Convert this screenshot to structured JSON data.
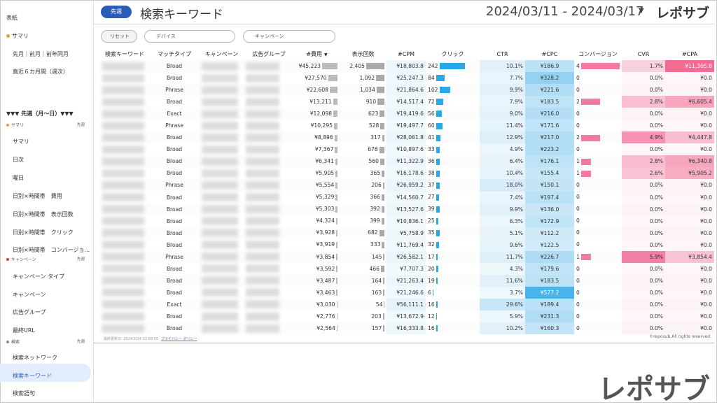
{
  "sidebar": {
    "top_items": [
      "表紙",
      "サマリ",
      "先月｜前月｜前年同月",
      "直近６カ月間（週次）"
    ],
    "week_header": "▼▼▼ 先週（月〜日）▼▼▼",
    "sections": [
      {
        "title": "サマリ",
        "tag": "先週",
        "items": [
          "サマリ",
          "日次",
          "曜日",
          "日別×時間帯　費用",
          "日別×時間帯　表示回数",
          "日別×時間帯　クリック",
          "日別×時間帯　コンバージョ..."
        ]
      },
      {
        "title": "キャンペーン",
        "tag": "先週",
        "items": [
          "キャンペーン タイプ",
          "キャンペーン",
          "広告グループ",
          "最終URL"
        ]
      },
      {
        "title": "検索",
        "tag": "先週",
        "items": [
          "検索ネットワーク",
          "検索キーワード",
          "検索語句"
        ]
      }
    ]
  },
  "header": {
    "badge": "先週",
    "title": "検索キーワード",
    "date_range": "2024/03/11 - 2024/03/17",
    "dropdown": "▼",
    "logo": "レポサブ"
  },
  "filters": {
    "reset": "リセット",
    "device": "デバイス",
    "campaign": "キャンペーン"
  },
  "table": {
    "columns": [
      "検索キーワード",
      "マッチタイプ",
      "キャンペーン",
      "広告グループ",
      "#費用",
      "表示回数",
      "#CPM",
      "クリック",
      "CTR",
      "#CPC",
      "コンバージョン",
      "CVR",
      "#CPA"
    ],
    "sort_indicator": "▼",
    "rows": [
      [
        "Broad",
        "¥45,223",
        "2,405",
        "¥18,803.8",
        "242",
        "10.1%",
        "¥186.9",
        "4",
        "1.7%",
        "¥11,305.8"
      ],
      [
        "Broad",
        "¥27,570",
        "1,092",
        "¥25,247.3",
        "84",
        "7.7%",
        "¥328.2",
        "0",
        "0.0%",
        "¥0.0"
      ],
      [
        "Phrase",
        "¥22,608",
        "1,034",
        "¥21,864.6",
        "102",
        "9.9%",
        "¥221.6",
        "0",
        "0.0%",
        "¥0.0"
      ],
      [
        "Broad",
        "¥13,211",
        "910",
        "¥14,517.4",
        "72",
        "7.9%",
        "¥183.5",
        "2",
        "2.8%",
        "¥6,605.4"
      ],
      [
        "Exact",
        "¥12,098",
        "623",
        "¥19,419.6",
        "56",
        "9.0%",
        "¥216.0",
        "0",
        "0.0%",
        "¥0.0"
      ],
      [
        "Phrase",
        "¥10,295",
        "528",
        "¥19,497.7",
        "60",
        "11.4%",
        "¥171.6",
        "0",
        "0.0%",
        "¥0.0"
      ],
      [
        "Broad",
        "¥8,896",
        "317",
        "¥28,061.8",
        "41",
        "12.9%",
        "¥217.0",
        "2",
        "4.9%",
        "¥4,447.8"
      ],
      [
        "Broad",
        "¥7,367",
        "676",
        "¥10,897.6",
        "33",
        "4.9%",
        "¥223.2",
        "0",
        "0.0%",
        "¥0.0"
      ],
      [
        "Broad",
        "¥6,341",
        "560",
        "¥11,322.9",
        "36",
        "6.4%",
        "¥176.1",
        "1",
        "2.8%",
        "¥6,340.8"
      ],
      [
        "Broad",
        "¥5,905",
        "365",
        "¥16,178.6",
        "38",
        "10.4%",
        "¥155.4",
        "1",
        "2.6%",
        "¥5,905.2"
      ],
      [
        "Phrase",
        "¥5,554",
        "206",
        "¥26,959.2",
        "37",
        "18.0%",
        "¥150.1",
        "0",
        "0.0%",
        "¥0.0"
      ],
      [
        "Broad",
        "¥5,329",
        "366",
        "¥14,560.7",
        "27",
        "7.4%",
        "¥197.4",
        "0",
        "0.0%",
        "¥0.0"
      ],
      [
        "Broad",
        "¥5,303",
        "392",
        "¥13,527.6",
        "39",
        "9.9%",
        "¥136.0",
        "0",
        "0.0%",
        "¥0.0"
      ],
      [
        "Broad",
        "¥4,324",
        "399",
        "¥10,836.1",
        "25",
        "6.3%",
        "¥172.9",
        "0",
        "0.0%",
        "¥0.0"
      ],
      [
        "Broad",
        "¥3,928",
        "682",
        "¥5,758.9",
        "35",
        "5.1%",
        "¥112.2",
        "0",
        "0.0%",
        "¥0.0"
      ],
      [
        "Broad",
        "¥3,919",
        "333",
        "¥11,769.4",
        "32",
        "9.6%",
        "¥122.5",
        "0",
        "0.0%",
        "¥0.0"
      ],
      [
        "Phrase",
        "¥3,854",
        "145",
        "¥26,582.1",
        "17",
        "11.7%",
        "¥226.7",
        "1",
        "5.9%",
        "¥3,854.4"
      ],
      [
        "Broad",
        "¥3,592",
        "466",
        "¥7,707.3",
        "20",
        "4.3%",
        "¥179.6",
        "0",
        "0.0%",
        "¥0.0"
      ],
      [
        "Broad",
        "¥3,487",
        "164",
        "¥21,263.4",
        "19",
        "11.6%",
        "¥183.5",
        "0",
        "0.0%",
        "¥0.0"
      ],
      [
        "Broad",
        "¥3,463",
        "163",
        "¥21,246.6",
        "6",
        "3.7%",
        "¥577.2",
        "0",
        "0.0%",
        "¥0.0"
      ],
      [
        "Exact",
        "¥3,030",
        "54",
        "¥56,111.1",
        "16",
        "29.6%",
        "¥189.4",
        "0",
        "0.0%",
        "¥0.0"
      ],
      [
        "Broad",
        "¥2,776",
        "203",
        "¥13,672.9",
        "12",
        "5.9%",
        "¥231.3",
        "0",
        "0.0%",
        "¥0.0"
      ],
      [
        "Broad",
        "¥2,564",
        "157",
        "¥16,333.8",
        "16",
        "10.2%",
        "¥160.3",
        "0",
        "0.0%",
        "¥0.0"
      ]
    ]
  },
  "footer": {
    "updated": "最終更新日: 2024/3/24 13:08:55",
    "privacy": "プライバシー ポリシー",
    "copyright": "©reposub All rights reserved."
  },
  "watermark": "レポサブ"
}
